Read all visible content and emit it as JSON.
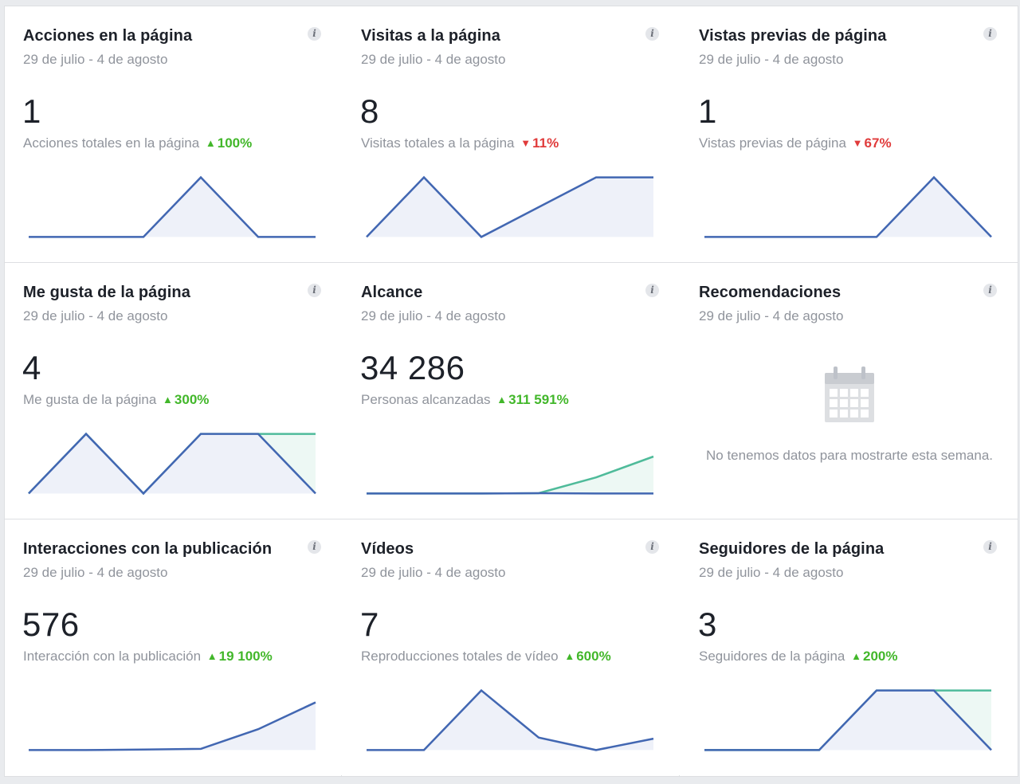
{
  "colors": {
    "line": "#4267b2",
    "fill": "#eef1f9",
    "compare_line": "#4fbb9a",
    "compare_fill": "#edf8f4",
    "up": "#42b72a",
    "down": "#e03b3b"
  },
  "cards": [
    {
      "title": "Acciones en la página",
      "date": "29 de julio - 4 de agosto",
      "value": "1",
      "metric": "Acciones totales en la página",
      "change": "100%",
      "trend": "up",
      "chart_data": {
        "type": "line",
        "series": [
          0,
          0,
          0,
          1,
          0,
          0
        ],
        "compare": null
      }
    },
    {
      "title": "Visitas a la página",
      "date": "29 de julio - 4 de agosto",
      "value": "8",
      "metric": "Visitas totales a la página",
      "change": "11%",
      "trend": "down",
      "chart_data": {
        "type": "line",
        "series": [
          0,
          1,
          0,
          0.5,
          1,
          1
        ],
        "compare": null
      }
    },
    {
      "title": "Vistas previas de página",
      "date": "29 de julio - 4 de agosto",
      "value": "1",
      "metric": "Vistas previas de página",
      "change": "67%",
      "trend": "down",
      "chart_data": {
        "type": "line",
        "series": [
          0,
          0,
          0,
          0,
          1,
          0
        ],
        "compare": null
      }
    },
    {
      "title": "Me gusta de la página",
      "date": "29 de julio - 4 de agosto",
      "value": "4",
      "metric": "Me gusta de la página",
      "change": "300%",
      "trend": "up",
      "chart_data": {
        "type": "line",
        "series": [
          0,
          1,
          0,
          1,
          1,
          0
        ],
        "compare": [
          0,
          1,
          0,
          1,
          1,
          1
        ]
      }
    },
    {
      "title": "Alcance",
      "date": "29 de julio - 4 de agosto",
      "value": "34 286",
      "metric": "Personas alcanzadas",
      "change": "311 591%",
      "trend": "up",
      "chart_data": {
        "type": "line",
        "series": [
          0,
          0,
          0,
          0.005,
          0,
          0
        ],
        "compare": [
          0,
          0,
          0,
          0.005,
          0.27,
          0.62
        ]
      }
    },
    {
      "title": "Recomendaciones",
      "date": "29 de julio - 4 de agosto",
      "empty": true,
      "empty_icon": "calendar-icon",
      "empty_text": "No tenemos datos para mostrarte esta semana."
    },
    {
      "title": "Interacciones con la publicación",
      "date": "29 de julio - 4 de agosto",
      "value": "576",
      "metric": "Interacción con la publicación",
      "change": "19 100%",
      "trend": "up",
      "chart_data": {
        "type": "line",
        "series": [
          0,
          0,
          0.01,
          0.02,
          0.35,
          0.8
        ],
        "compare": null
      }
    },
    {
      "title": "Vídeos",
      "date": "29 de julio - 4 de agosto",
      "value": "7",
      "metric": "Reproducciones totales de vídeo",
      "change": "600%",
      "trend": "up",
      "chart_data": {
        "type": "line",
        "series": [
          0,
          0,
          1,
          0.21,
          0,
          0.19
        ],
        "compare": null
      }
    },
    {
      "title": "Seguidores de la página",
      "date": "29 de julio - 4 de agosto",
      "value": "3",
      "metric": "Seguidores de la página",
      "change": "200%",
      "trend": "up",
      "chart_data": {
        "type": "line",
        "series": [
          0,
          0,
          0,
          1,
          1,
          0
        ],
        "compare": [
          0,
          0,
          0,
          1,
          1,
          1
        ]
      }
    }
  ]
}
